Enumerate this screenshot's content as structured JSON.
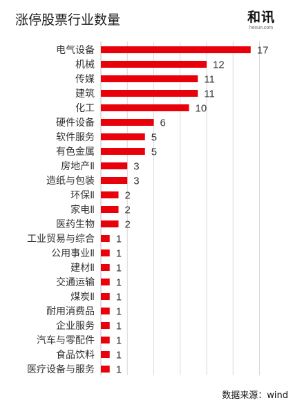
{
  "title": "涨停股票行业数量",
  "logo": {
    "mark": "和讯",
    "sub": "hexun.com"
  },
  "source": "数据来源：wind",
  "colors": {
    "bar": "#e8000b",
    "grid": "#d9d9d9"
  },
  "chart_data": {
    "type": "bar",
    "orientation": "horizontal",
    "title": "涨停股票行业数量",
    "categories": [
      "电气设备",
      "机械",
      "传媒",
      "建筑",
      "化工",
      "硬件设备",
      "软件服务",
      "有色金属",
      "房地产Ⅱ",
      "造纸与包装",
      "环保Ⅱ",
      "家电Ⅱ",
      "医药生物",
      "工业贸易与综合",
      "公用事业Ⅱ",
      "建材Ⅱ",
      "交通运输",
      "煤炭Ⅱ",
      "耐用消费品",
      "企业服务",
      "汽车与零配件",
      "食品饮料",
      "医疗设备与服务"
    ],
    "values": [
      17,
      12,
      11,
      11,
      10,
      6,
      5,
      5,
      3,
      3,
      2,
      2,
      2,
      1,
      1,
      1,
      1,
      1,
      1,
      1,
      1,
      1,
      1
    ],
    "xlim": [
      0,
      18
    ],
    "grid": true,
    "data_labels": true,
    "legend": "none"
  }
}
